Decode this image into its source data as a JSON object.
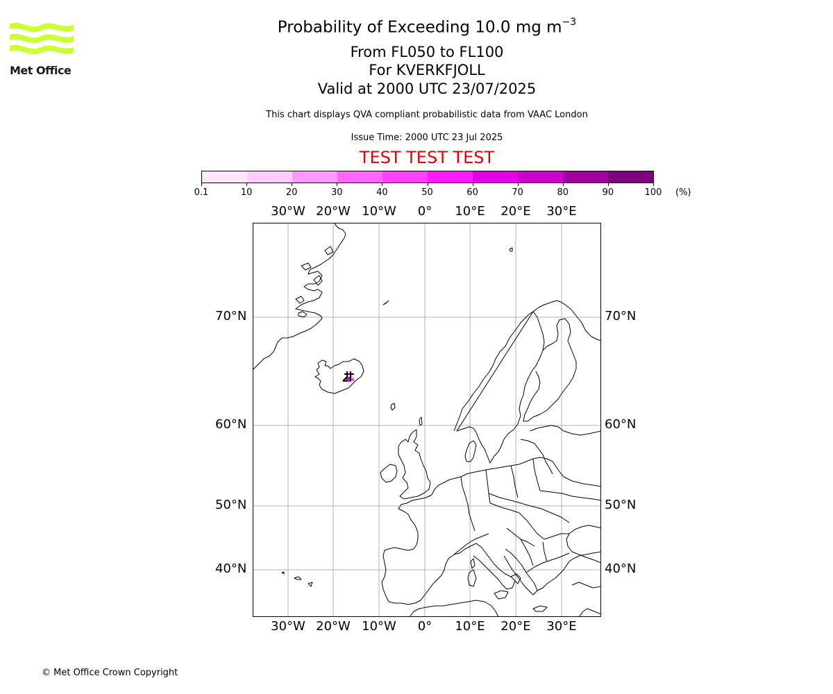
{
  "logo": {
    "text": "Met Office",
    "color": "#ccff33"
  },
  "title": {
    "line1": "Probability of Exceeding 10.0 mg m",
    "line1_sup": "−3",
    "line2": "From FL050 to FL100",
    "line3": "For KVERKFJOLL",
    "line4": "Valid at 2000 UTC 23/07/2025"
  },
  "subtitle": "This chart displays QVA compliant probabilistic data from VAAC London",
  "issue_time": "Issue Time: 2000 UTC 23 Jul 2025",
  "test_banner": "TEST TEST TEST",
  "test_color": "#e00000",
  "colorbar": {
    "ticks": [
      "0.1",
      "10",
      "20",
      "30",
      "40",
      "50",
      "60",
      "70",
      "80",
      "90",
      "100"
    ],
    "unit": "(%)",
    "colors": [
      "#ffe6ff",
      "#ffccff",
      "#ff99ff",
      "#ff66ff",
      "#ff40ff",
      "#ff1aff",
      "#e600e6",
      "#cc00cc",
      "#a300a3",
      "#800080",
      "#5c005c"
    ]
  },
  "map": {
    "lon_labels": [
      "30°W",
      "20°W",
      "10°W",
      "0°",
      "10°E",
      "20°E",
      "30°E"
    ],
    "lat_labels": [
      "70°N",
      "60°N",
      "50°N",
      "40°N"
    ],
    "lon_values": [
      -30,
      -20,
      -10,
      0,
      10,
      20,
      30
    ],
    "lat_values": [
      70,
      60,
      50,
      40
    ],
    "volcano": "Kverkfjoll",
    "plume_probability_percent": [
      20,
      40,
      70
    ]
  },
  "copyright": "© Met Office Crown Copyright"
}
